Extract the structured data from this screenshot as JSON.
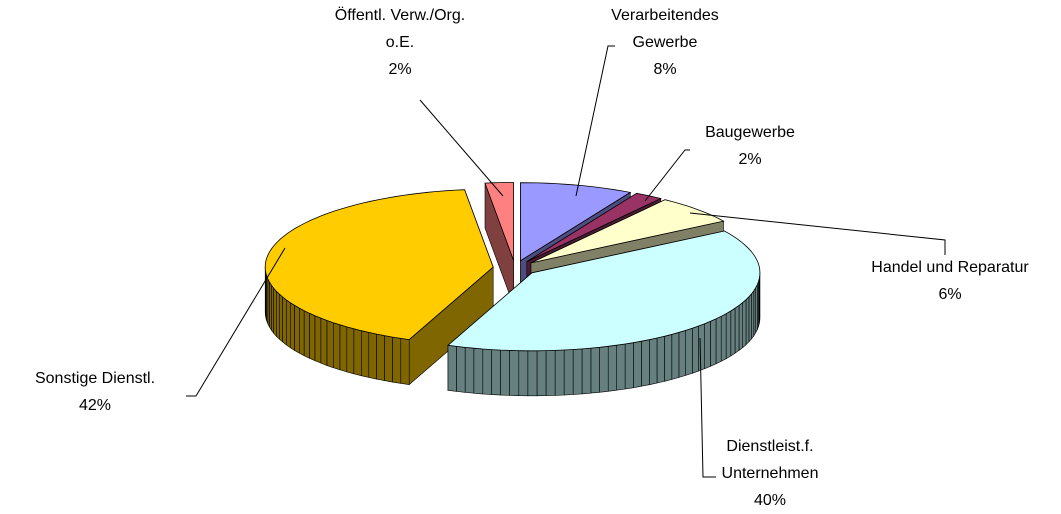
{
  "chart_data": {
    "type": "pie3d",
    "categories": [
      "Verarbeitendes\nGewerbe",
      "Baugewerbe",
      "Handel und Reparatur",
      "Dienstleist.f.\nUnternehmen",
      "Sonstige Dienstl.",
      "Öffentl. Verw./Org.\no.E."
    ],
    "values": [
      8,
      2,
      6,
      40,
      42,
      2
    ],
    "value_labels": [
      "8%",
      "2%",
      "6%",
      "40%",
      "42%",
      "2%"
    ],
    "colors": [
      "#9999ff",
      "#993366",
      "#ffffcc",
      "#ccffff",
      "#ffcc00",
      "#ff8080"
    ]
  }
}
